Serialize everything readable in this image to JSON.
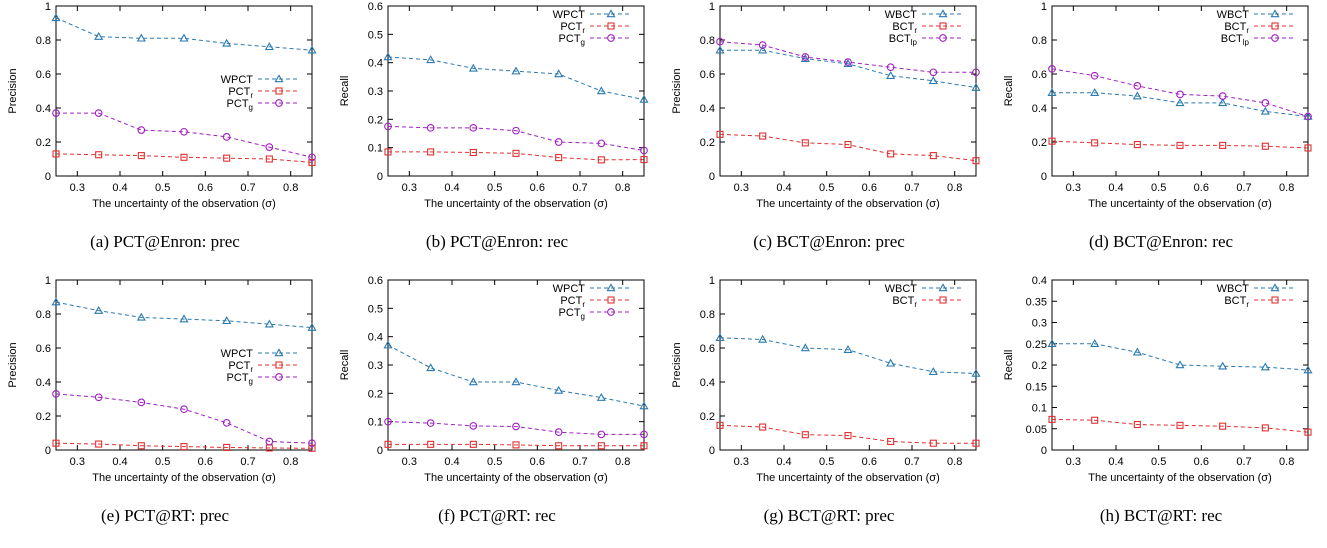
{
  "colors": {
    "WPCT": "#2a7ab0",
    "WBCT": "#2a7ab0",
    "PCT_r": "#e03131",
    "BCT_r": "#e03131",
    "PCT_g": "#a020c0",
    "BCT_lp": "#a020c0"
  },
  "chart_data": [
    {
      "type": "line",
      "caption": "(a)  PCT@Enron: prec",
      "xlabel": "The uncertainty of the observation (σ)",
      "ylabel": "Precision",
      "x": [
        0.25,
        0.35,
        0.45,
        0.55,
        0.65,
        0.75,
        0.85
      ],
      "xlim": [
        0.25,
        0.85
      ],
      "xticks": [
        0.3,
        0.4,
        0.5,
        0.6,
        0.7,
        0.8
      ],
      "xtick_labels": [
        "0.3",
        "0.4",
        "0.5",
        "0.6",
        "0.7",
        "0.8"
      ],
      "ylim": [
        0,
        1
      ],
      "yticks": [
        0,
        0.2,
        0.4,
        0.6,
        0.8,
        1
      ],
      "ytick_labels": [
        "0",
        "0.2",
        "0.4",
        "0.6",
        "0.8",
        "1"
      ],
      "legend": "middle-right",
      "series": [
        {
          "name": "WPCT",
          "base": "WPCT",
          "sub": "",
          "marker": "triangle",
          "color_key": "WPCT",
          "values": [
            0.93,
            0.82,
            0.81,
            0.81,
            0.78,
            0.76,
            0.74
          ]
        },
        {
          "name": "PCTr",
          "base": "PCT",
          "sub": "r",
          "marker": "square",
          "color_key": "PCT_r",
          "values": [
            0.13,
            0.125,
            0.12,
            0.11,
            0.105,
            0.1,
            0.08
          ]
        },
        {
          "name": "PCTg",
          "base": "PCT",
          "sub": "g",
          "marker": "circle",
          "color_key": "PCT_g",
          "values": [
            0.37,
            0.37,
            0.27,
            0.26,
            0.23,
            0.17,
            0.11
          ]
        }
      ]
    },
    {
      "type": "line",
      "caption": "(b)  PCT@Enron: rec",
      "xlabel": "The uncertainty of the observation (σ)",
      "ylabel": "Recall",
      "x": [
        0.25,
        0.35,
        0.45,
        0.55,
        0.65,
        0.75,
        0.85
      ],
      "xlim": [
        0.25,
        0.85
      ],
      "xticks": [
        0.3,
        0.4,
        0.5,
        0.6,
        0.7,
        0.8
      ],
      "xtick_labels": [
        "0.3",
        "0.4",
        "0.5",
        "0.6",
        "0.7",
        "0.8"
      ],
      "ylim": [
        0,
        0.6
      ],
      "yticks": [
        0,
        0.1,
        0.2,
        0.3,
        0.4,
        0.5,
        0.6
      ],
      "ytick_labels": [
        "0",
        "0.1",
        "0.2",
        "0.3",
        "0.4",
        "0.5",
        "0.6"
      ],
      "legend": "top-right",
      "series": [
        {
          "name": "WPCT",
          "base": "WPCT",
          "sub": "",
          "marker": "triangle",
          "color_key": "WPCT",
          "values": [
            0.42,
            0.41,
            0.38,
            0.37,
            0.36,
            0.3,
            0.27
          ]
        },
        {
          "name": "PCTr",
          "base": "PCT",
          "sub": "r",
          "marker": "square",
          "color_key": "PCT_r",
          "values": [
            0.085,
            0.085,
            0.083,
            0.08,
            0.065,
            0.057,
            0.058
          ]
        },
        {
          "name": "PCTg",
          "base": "PCT",
          "sub": "g",
          "marker": "circle",
          "color_key": "PCT_g",
          "values": [
            0.175,
            0.17,
            0.17,
            0.16,
            0.12,
            0.115,
            0.09
          ]
        }
      ]
    },
    {
      "type": "line",
      "caption": "(c)  BCT@Enron: prec",
      "xlabel": "The uncertainty of the observation (σ)",
      "ylabel": "Precision",
      "x": [
        0.25,
        0.35,
        0.45,
        0.55,
        0.65,
        0.75,
        0.85
      ],
      "xlim": [
        0.25,
        0.85
      ],
      "xticks": [
        0.3,
        0.4,
        0.5,
        0.6,
        0.7,
        0.8
      ],
      "xtick_labels": [
        "0.3",
        "0.4",
        "0.5",
        "0.6",
        "0.7",
        "0.8"
      ],
      "ylim": [
        0,
        1
      ],
      "yticks": [
        0,
        0.2,
        0.4,
        0.6,
        0.8,
        1
      ],
      "ytick_labels": [
        "0",
        "0.2",
        "0.4",
        "0.6",
        "0.8",
        "1"
      ],
      "legend": "top-right",
      "series": [
        {
          "name": "WBCT",
          "base": "WBCT",
          "sub": "",
          "marker": "triangle",
          "color_key": "WBCT",
          "values": [
            0.74,
            0.74,
            0.69,
            0.66,
            0.59,
            0.56,
            0.52
          ]
        },
        {
          "name": "BCTr",
          "base": "BCT",
          "sub": "r",
          "marker": "square",
          "color_key": "BCT_r",
          "values": [
            0.245,
            0.235,
            0.195,
            0.185,
            0.13,
            0.12,
            0.09
          ]
        },
        {
          "name": "BCTlp",
          "base": "BCT",
          "sub": "lp",
          "marker": "circle",
          "color_key": "BCT_lp",
          "values": [
            0.79,
            0.77,
            0.7,
            0.67,
            0.64,
            0.61,
            0.61
          ]
        }
      ]
    },
    {
      "type": "line",
      "caption": "(d)  BCT@Enron: rec",
      "xlabel": "The uncertainty of the observation (σ)",
      "ylabel": "Recall",
      "x": [
        0.25,
        0.35,
        0.45,
        0.55,
        0.65,
        0.75,
        0.85
      ],
      "xlim": [
        0.25,
        0.85
      ],
      "xticks": [
        0.3,
        0.4,
        0.5,
        0.6,
        0.7,
        0.8
      ],
      "xtick_labels": [
        "0.3",
        "0.4",
        "0.5",
        "0.6",
        "0.7",
        "0.8"
      ],
      "ylim": [
        0,
        1
      ],
      "yticks": [
        0,
        0.2,
        0.4,
        0.6,
        0.8,
        1
      ],
      "ytick_labels": [
        "0",
        "0.2",
        "0.4",
        "0.6",
        "0.8",
        "1"
      ],
      "legend": "top-right",
      "series": [
        {
          "name": "WBCT",
          "base": "WBCT",
          "sub": "",
          "marker": "triangle",
          "color_key": "WBCT",
          "values": [
            0.49,
            0.49,
            0.47,
            0.43,
            0.43,
            0.38,
            0.35
          ]
        },
        {
          "name": "BCTr",
          "base": "BCT",
          "sub": "r",
          "marker": "square",
          "color_key": "BCT_r",
          "values": [
            0.205,
            0.195,
            0.185,
            0.18,
            0.18,
            0.175,
            0.165
          ]
        },
        {
          "name": "BCTlp",
          "base": "BCT",
          "sub": "lp",
          "marker": "circle",
          "color_key": "BCT_lp",
          "values": [
            0.63,
            0.59,
            0.53,
            0.48,
            0.47,
            0.43,
            0.35
          ]
        }
      ]
    },
    {
      "type": "line",
      "caption": "(e)  PCT@RT: prec",
      "xlabel": "The uncertainty of the observation (σ)",
      "ylabel": "Precision",
      "x": [
        0.25,
        0.35,
        0.45,
        0.55,
        0.65,
        0.75,
        0.85
      ],
      "xlim": [
        0.25,
        0.85
      ],
      "xticks": [
        0.3,
        0.4,
        0.5,
        0.6,
        0.7,
        0.8
      ],
      "xtick_labels": [
        "0.3",
        "0.4",
        "0.5",
        "0.6",
        "0.7",
        "0.8"
      ],
      "ylim": [
        0,
        1
      ],
      "yticks": [
        0,
        0.2,
        0.4,
        0.6,
        0.8,
        1
      ],
      "ytick_labels": [
        "0",
        "0.2",
        "0.4",
        "0.6",
        "0.8",
        "1"
      ],
      "legend": "middle-right",
      "series": [
        {
          "name": "WPCT",
          "base": "WPCT",
          "sub": "",
          "marker": "triangle",
          "color_key": "WPCT",
          "values": [
            0.87,
            0.82,
            0.78,
            0.77,
            0.76,
            0.74,
            0.72
          ]
        },
        {
          "name": "PCTr",
          "base": "PCT",
          "sub": "r",
          "marker": "square",
          "color_key": "PCT_r",
          "values": [
            0.04,
            0.035,
            0.025,
            0.02,
            0.015,
            0.012,
            0.01
          ]
        },
        {
          "name": "PCTg",
          "base": "PCT",
          "sub": "g",
          "marker": "circle",
          "color_key": "PCT_g",
          "values": [
            0.33,
            0.31,
            0.28,
            0.24,
            0.16,
            0.05,
            0.04
          ]
        }
      ]
    },
    {
      "type": "line",
      "caption": "(f)  PCT@RT: rec",
      "xlabel": "The uncertainty of the observation (σ)",
      "ylabel": "Recall",
      "x": [
        0.25,
        0.35,
        0.45,
        0.55,
        0.65,
        0.75,
        0.85
      ],
      "xlim": [
        0.25,
        0.85
      ],
      "xticks": [
        0.3,
        0.4,
        0.5,
        0.6,
        0.7,
        0.8
      ],
      "xtick_labels": [
        "0.3",
        "0.4",
        "0.5",
        "0.6",
        "0.7",
        "0.8"
      ],
      "ylim": [
        0,
        0.6
      ],
      "yticks": [
        0,
        0.1,
        0.2,
        0.3,
        0.4,
        0.5,
        0.6
      ],
      "ytick_labels": [
        "0",
        "0.1",
        "0.2",
        "0.3",
        "0.4",
        "0.5",
        "0.6"
      ],
      "legend": "top-right",
      "series": [
        {
          "name": "WPCT",
          "base": "WPCT",
          "sub": "",
          "marker": "triangle",
          "color_key": "WPCT",
          "values": [
            0.37,
            0.29,
            0.24,
            0.24,
            0.21,
            0.185,
            0.155
          ]
        },
        {
          "name": "PCTr",
          "base": "PCT",
          "sub": "r",
          "marker": "square",
          "color_key": "PCT_r",
          "values": [
            0.02,
            0.02,
            0.02,
            0.018,
            0.015,
            0.015,
            0.015
          ]
        },
        {
          "name": "PCTg",
          "base": "PCT",
          "sub": "g",
          "marker": "circle",
          "color_key": "PCT_g",
          "values": [
            0.1,
            0.095,
            0.085,
            0.083,
            0.063,
            0.055,
            0.055
          ]
        }
      ]
    },
    {
      "type": "line",
      "caption": "(g)  BCT@RT: prec",
      "xlabel": "The uncertainty of the observation (σ)",
      "ylabel": "Precision",
      "x": [
        0.25,
        0.35,
        0.45,
        0.55,
        0.65,
        0.75,
        0.85
      ],
      "xlim": [
        0.25,
        0.85
      ],
      "xticks": [
        0.3,
        0.4,
        0.5,
        0.6,
        0.7,
        0.8
      ],
      "xtick_labels": [
        "0.3",
        "0.4",
        "0.5",
        "0.6",
        "0.7",
        "0.8"
      ],
      "ylim": [
        0,
        1
      ],
      "yticks": [
        0,
        0.2,
        0.4,
        0.6,
        0.8,
        1
      ],
      "ytick_labels": [
        "0",
        "0.2",
        "0.4",
        "0.6",
        "0.8",
        "1"
      ],
      "legend": "top-right",
      "series": [
        {
          "name": "WBCT",
          "base": "WBCT",
          "sub": "",
          "marker": "triangle",
          "color_key": "WBCT",
          "values": [
            0.66,
            0.65,
            0.6,
            0.59,
            0.51,
            0.46,
            0.45
          ]
        },
        {
          "name": "BCTr",
          "base": "BCT",
          "sub": "r",
          "marker": "square",
          "color_key": "BCT_r",
          "values": [
            0.145,
            0.135,
            0.09,
            0.085,
            0.05,
            0.04,
            0.04
          ]
        }
      ]
    },
    {
      "type": "line",
      "caption": "(h)  BCT@RT: rec",
      "xlabel": "The uncertainty of the observation (σ)",
      "ylabel": "Recall",
      "x": [
        0.25,
        0.35,
        0.45,
        0.55,
        0.65,
        0.75,
        0.85
      ],
      "xlim": [
        0.25,
        0.85
      ],
      "xticks": [
        0.3,
        0.4,
        0.5,
        0.6,
        0.7,
        0.8
      ],
      "xtick_labels": [
        "0.3",
        "0.4",
        "0.5",
        "0.6",
        "0.7",
        "0.8"
      ],
      "ylim": [
        0,
        0.4
      ],
      "yticks": [
        0,
        0.05,
        0.1,
        0.15,
        0.2,
        0.25,
        0.3,
        0.35,
        0.4
      ],
      "ytick_labels": [
        "0",
        "0.05",
        "0.1",
        "0.15",
        "0.2",
        "0.25",
        "0.3",
        "0.35",
        "0.4"
      ],
      "legend": "top-right",
      "series": [
        {
          "name": "WBCT",
          "base": "WBCT",
          "sub": "",
          "marker": "triangle",
          "color_key": "WBCT",
          "values": [
            0.25,
            0.25,
            0.23,
            0.2,
            0.197,
            0.195,
            0.188
          ]
        },
        {
          "name": "BCTr",
          "base": "BCT",
          "sub": "r",
          "marker": "square",
          "color_key": "BCT_r",
          "values": [
            0.072,
            0.07,
            0.06,
            0.058,
            0.056,
            0.052,
            0.042
          ]
        }
      ]
    }
  ]
}
